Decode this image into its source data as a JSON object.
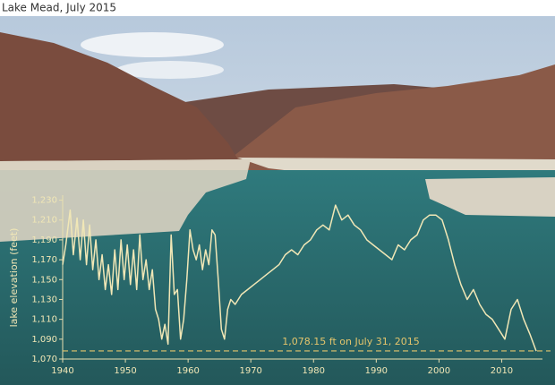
{
  "chart_data": {
    "type": "line",
    "title": "Lake Mead, July 2015",
    "y_label": "lake elevation (feet)",
    "color": "#f1e7b6",
    "x": [
      1940.0,
      1940.5,
      1941.2,
      1941.7,
      1942.3,
      1942.8,
      1943.3,
      1943.8,
      1944.3,
      1944.8,
      1945.3,
      1945.8,
      1946.3,
      1946.8,
      1947.3,
      1947.8,
      1948.3,
      1948.8,
      1949.3,
      1949.8,
      1950.3,
      1950.8,
      1951.3,
      1951.8,
      1952.3,
      1952.8,
      1953.3,
      1953.8,
      1954.3,
      1954.8,
      1955.3,
      1955.8,
      1956.3,
      1956.8,
      1957.3,
      1957.8,
      1958.3,
      1958.8,
      1959.3,
      1959.8,
      1960.3,
      1960.8,
      1961.3,
      1961.8,
      1962.3,
      1962.8,
      1963.3,
      1963.8,
      1964.3,
      1964.8,
      1965.3,
      1965.8,
      1966.3,
      1966.8,
      1967.5,
      1968.5,
      1969.5,
      1970.5,
      1971.5,
      1972.5,
      1973.5,
      1974.5,
      1975.5,
      1976.5,
      1977.5,
      1978.5,
      1979.5,
      1980.5,
      1981.5,
      1982.5,
      1983.5,
      1984.5,
      1985.5,
      1986.5,
      1987.5,
      1988.5,
      1989.5,
      1990.5,
      1991.5,
      1992.5,
      1993.5,
      1994.5,
      1995.5,
      1996.5,
      1997.5,
      1998.5,
      1999.5,
      2000.5,
      2001.5,
      2002.5,
      2003.5,
      2004.5,
      2005.5,
      2006.5,
      2007.5,
      2008.5,
      2009.5,
      2010.5,
      2011.5,
      2012.5,
      2013.5,
      2014.5,
      2015.5
    ],
    "values": [
      1165,
      1185,
      1220,
      1175,
      1212,
      1170,
      1210,
      1165,
      1205,
      1160,
      1190,
      1150,
      1175,
      1140,
      1165,
      1135,
      1180,
      1140,
      1190,
      1150,
      1185,
      1145,
      1180,
      1140,
      1195,
      1150,
      1170,
      1140,
      1160,
      1120,
      1110,
      1090,
      1105,
      1085,
      1195,
      1135,
      1140,
      1090,
      1110,
      1150,
      1200,
      1180,
      1170,
      1185,
      1160,
      1180,
      1165,
      1200,
      1195,
      1150,
      1100,
      1090,
      1120,
      1130,
      1125,
      1135,
      1140,
      1145,
      1150,
      1155,
      1160,
      1165,
      1175,
      1180,
      1175,
      1185,
      1190,
      1200,
      1205,
      1200,
      1225,
      1210,
      1215,
      1205,
      1200,
      1190,
      1185,
      1180,
      1175,
      1170,
      1185,
      1180,
      1190,
      1195,
      1210,
      1215,
      1215,
      1210,
      1190,
      1165,
      1145,
      1130,
      1140,
      1125,
      1115,
      1110,
      1100,
      1090,
      1120,
      1130,
      1110,
      1095,
      1078
    ],
    "xlim": [
      1940,
      2016.5
    ],
    "xticks": [
      1940,
      1950,
      1960,
      1970,
      1980,
      1990,
      2000,
      2010
    ],
    "ylim": [
      1070,
      1235
    ],
    "yticks": [
      {
        "value": 1070,
        "label": "1,070"
      },
      {
        "value": 1090,
        "label": "1,090"
      },
      {
        "value": 1110,
        "label": "1,110"
      },
      {
        "value": 1130,
        "label": "1,130"
      },
      {
        "value": 1150,
        "label": "1,150"
      },
      {
        "value": 1170,
        "label": "1,170"
      },
      {
        "value": 1190,
        "label": "1,190"
      },
      {
        "value": 1210,
        "label": "1,210"
      },
      {
        "value": 1230,
        "label": "1,230"
      }
    ],
    "reference_line": {
      "value": 1078.15,
      "label": "1,078.15 ft on July 31, 2015",
      "color": "#e4c56c"
    }
  }
}
